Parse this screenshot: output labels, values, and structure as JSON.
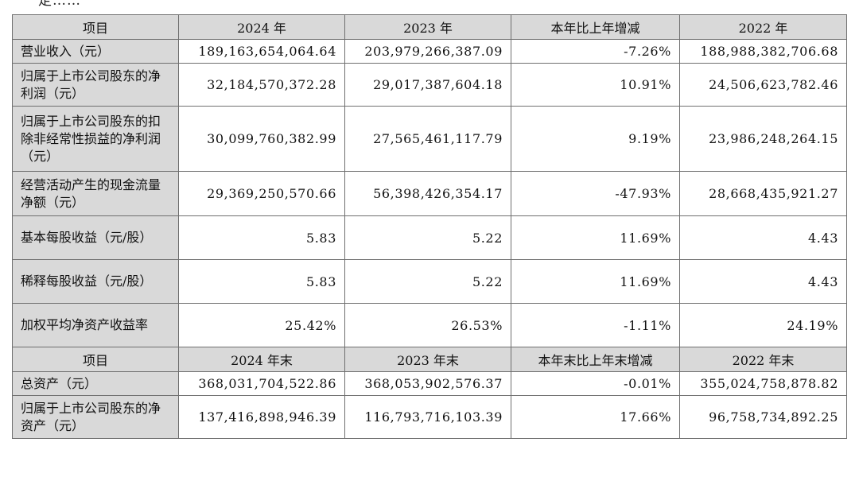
{
  "header": {
    "fragment": "一定……",
    "columns": [
      "项目",
      "2024 年",
      "2023 年",
      "本年比上年增减",
      "2022 年"
    ]
  },
  "rows": [
    {
      "label": "营业收入（元）",
      "v2024": "189,163,654,064.64",
      "v2023": "203,979,266,387.09",
      "change": "-7.26%",
      "v2022": "188,988,382,706.68"
    },
    {
      "label": "归属于上市公司股东的净利润（元）",
      "v2024": "32,184,570,372.28",
      "v2023": "29,017,387,604.18",
      "change": "10.91%",
      "v2022": "24,506,623,782.46"
    },
    {
      "label": "归属于上市公司股东的扣除非经常性损益的净利润（元）",
      "v2024": "30,099,760,382.99",
      "v2023": "27,565,461,117.79",
      "change": "9.19%",
      "v2022": "23,986,248,264.15"
    },
    {
      "label": "经营活动产生的现金流量净额（元）",
      "v2024": "29,369,250,570.66",
      "v2023": "56,398,426,354.17",
      "change": "-47.93%",
      "v2022": "28,668,435,921.27"
    },
    {
      "label": "基本每股收益（元/股）",
      "v2024": "5.83",
      "v2023": "5.22",
      "change": "11.69%",
      "v2022": "4.43"
    },
    {
      "label": "稀释每股收益（元/股）",
      "v2024": "5.83",
      "v2023": "5.22",
      "change": "11.69%",
      "v2022": "4.43"
    },
    {
      "label": "加权平均净资产收益率",
      "v2024": "25.42%",
      "v2023": "26.53%",
      "change": "-1.11%",
      "v2022": "24.19%"
    }
  ],
  "subheader": {
    "columns": [
      "项目",
      "2024 年末",
      "2023 年末",
      "本年末比上年末增减",
      "2022 年末"
    ]
  },
  "rows_end": [
    {
      "label": "总资产（元）",
      "v2024": "368,031,704,522.86",
      "v2023": "368,053,902,576.37",
      "change": "-0.01%",
      "v2022": "355,024,758,878.82"
    },
    {
      "label": "归属于上市公司股东的净资产（元）",
      "v2024": "137,416,898,946.39",
      "v2023": "116,793,716,103.39",
      "change": "17.66%",
      "v2022": "96,758,734,892.25"
    }
  ]
}
